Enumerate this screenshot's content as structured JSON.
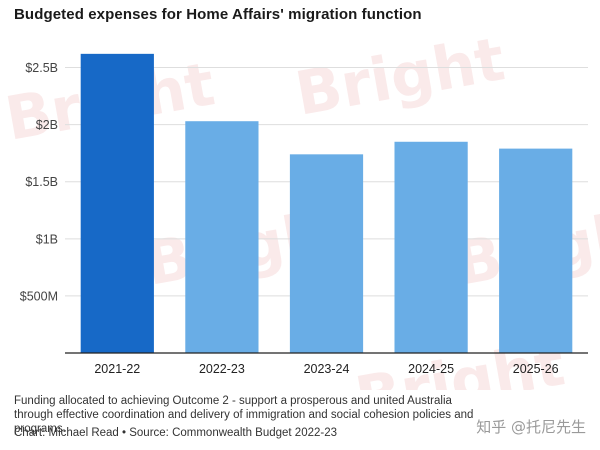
{
  "chart_data": {
    "type": "bar",
    "title": "Budgeted expenses for Home Affairs' migration function",
    "categories": [
      "2021-22",
      "2022-23",
      "2023-24",
      "2024-25",
      "2025-26"
    ],
    "values": [
      2.62,
      2.03,
      1.74,
      1.85,
      1.79
    ],
    "unit": "billion AUD",
    "ylim": [
      0,
      2.75
    ],
    "yticks": [
      {
        "value": 0.5,
        "label": "$500M"
      },
      {
        "value": 1.0,
        "label": "$1B"
      },
      {
        "value": 1.5,
        "label": "$1.5B"
      },
      {
        "value": 2.0,
        "label": "$2B"
      },
      {
        "value": 2.5,
        "label": "$2.5B"
      }
    ],
    "colors": {
      "highlight": "#1769c7",
      "default": "#69ade6",
      "grid": "#dedede"
    },
    "grid": true,
    "highlighted_category": "2021-22"
  },
  "caption": "Funding allocated to achieving Outcome 2 - support a prosperous and united Australia through effective coordination and delivery of immigration and social cohesion policies and programs.",
  "credit": "Chart: Michael Read • Source: Commonwealth Budget 2022-23",
  "watermarks": {
    "bright": "Bright",
    "zhihu": "知乎 @托尼先生"
  }
}
